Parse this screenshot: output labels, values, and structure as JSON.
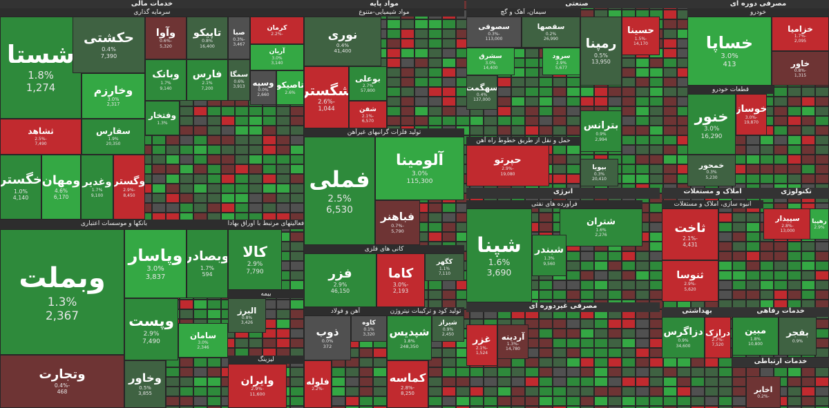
{
  "headers": [
    "خدمات مالی",
    "سرمایه گذاری",
    "مواد پایه",
    "مواد شیمیایی-متنوع",
    "صنعتی",
    "سیمان، آهک و گچ",
    "مصرفی دوره ای",
    "خودرو",
    "بانکها و موسسات اعتباری",
    "فعالیتهای مرتبط با اوراق بهادار",
    "تولید فلزات گرانبهای غیرآهن",
    "کانی های فلزی",
    "آهن و فولاد",
    "تولید کود و ترکیبات نیتروژن",
    "انرژی",
    "فراورده های نفتی",
    "املاک و مستغلات",
    "انبوه سازی، املاک و مستغلات",
    "تکنولوژی",
    "مصرفی غیردوره ای",
    "بهداشتی",
    "خدمات رفاهی",
    "خدمات ارتباطی",
    "قطعات خودرو",
    "بیمه",
    "لیزینگ",
    "حمل و نقل از طریق خطوط راه آهن"
  ],
  "tiles": [
    {
      "name": "شستا",
      "change": "1.8%",
      "value": "1,274"
    },
    {
      "name": "حکشتی",
      "change": "0.4%",
      "value": "7,390"
    },
    {
      "name": "وخارزم",
      "change": "3.0%",
      "value": "2,317"
    },
    {
      "name": "ثشاهد",
      "change": "-2.5%",
      "value": "7,490"
    },
    {
      "name": "سفارس",
      "change": "1.9%",
      "value": "20,350"
    },
    {
      "name": "خگستر",
      "change": "1.0%",
      "value": "4,140"
    },
    {
      "name": "ومهان",
      "change": "4.6%",
      "value": "6,170"
    },
    {
      "name": "وغدیر",
      "change": "1.7%",
      "value": "9,100"
    },
    {
      "name": "وگستر",
      "change": "-2.9%",
      "value": "8,450"
    },
    {
      "name": "وآوا",
      "change": "-0.6%",
      "value": "5,320"
    },
    {
      "name": "تاپیکو",
      "change": "0.8%",
      "value": "16,400"
    },
    {
      "name": "صبا",
      "change": "-0.3%",
      "value": "3,467"
    },
    {
      "name": "کرمان",
      "change": "-2.2%"
    },
    {
      "name": "آریان",
      "change": "3.0%",
      "value": "3,140"
    },
    {
      "name": "وبانک",
      "change": "1.7%",
      "value": "9,140"
    },
    {
      "name": "فارس",
      "change": "2.1%",
      "value": "7,200"
    },
    {
      "name": "سمگا",
      "change": "0.6%",
      "value": "3,913"
    },
    {
      "name": "وسپه",
      "change": "0.0%",
      "value": "2,660"
    },
    {
      "name": "تاصیکو",
      "change": "2.6%"
    },
    {
      "name": "وفتخار",
      "change": "1.3%"
    },
    {
      "name": "وبملت",
      "change": "1.3%",
      "value": "2,367"
    },
    {
      "name": "وپاسار",
      "change": "3.0%",
      "value": "3,837"
    },
    {
      "name": "وبصادر",
      "change": "1.7%",
      "value": "594"
    },
    {
      "name": "وپست",
      "change": "2.9%",
      "value": "7,490"
    },
    {
      "name": "سامان",
      "change": "3.0%",
      "value": "2,346"
    },
    {
      "name": "وتجارت",
      "change": "-0.4%",
      "value": "468"
    },
    {
      "name": "وخاور",
      "change": "0.5%",
      "value": "3,855"
    },
    {
      "name": "کالا",
      "change": "2.9%",
      "value": "7,790"
    },
    {
      "name": "البرز",
      "change": "0.8%",
      "value": "3,426"
    },
    {
      "name": "وایران",
      "change": "-2.9%",
      "value": "11,600"
    },
    {
      "name": "نوری",
      "change": "0.4%",
      "value": "41,400"
    },
    {
      "name": "بوعلی",
      "change": "2.7%",
      "value": "57,800"
    },
    {
      "name": "شگستر",
      "change": "-2.6%",
      "value": "1,044"
    },
    {
      "name": "شفن",
      "change": "-2.1%",
      "value": "6,570"
    },
    {
      "name": "فملی",
      "change": "2.5%",
      "value": "6,530"
    },
    {
      "name": "آلومینا",
      "change": "3.0%",
      "value": "115,300"
    },
    {
      "name": "فباهنر",
      "change": "-0.7%",
      "value": "5,790"
    },
    {
      "name": "فزر",
      "change": "2.9%",
      "value": "46,150"
    },
    {
      "name": "کاما",
      "change": "-3.0%",
      "value": "2,193"
    },
    {
      "name": "کگهر",
      "change": "1.1%",
      "value": "7,110"
    },
    {
      "name": "ذوب",
      "change": "0.0%",
      "value": "372"
    },
    {
      "name": "کاوه",
      "change": "0.1%",
      "value": "3,320"
    },
    {
      "name": "شپدیس",
      "change": "1.8%",
      "value": "248,350"
    },
    {
      "name": "شیراز",
      "change": "0.9%",
      "value": "2,450"
    },
    {
      "name": "کماسه",
      "change": "-2.8%",
      "value": "8,250"
    },
    {
      "name": "فلوله",
      "change": "-2.2%"
    },
    {
      "name": "سصوفی",
      "change": "-0.3%",
      "value": "113,000"
    },
    {
      "name": "سفصها",
      "change": "0.2%",
      "value": "26,990"
    },
    {
      "name": "سشرق",
      "change": "3.0%",
      "value": "14,400"
    },
    {
      "name": "سرود",
      "change": "2.9%",
      "value": "5,677"
    },
    {
      "name": "سهگمت",
      "change": "0.4%",
      "value": "137,000"
    },
    {
      "name": "رمپنا",
      "change": "0.5%",
      "value": "13,950"
    },
    {
      "name": "حسینا",
      "change": "-1.5%",
      "value": "14,170"
    },
    {
      "name": "بترانس",
      "change": "0.9%",
      "value": "2,994"
    },
    {
      "name": "حپرتو",
      "change": "-2.9%",
      "value": "19,080"
    },
    {
      "name": "بپویا",
      "change": "0.3%",
      "value": "20,410"
    },
    {
      "name": "خساپا",
      "change": "3.0%",
      "value": "413"
    },
    {
      "name": "خزامیا",
      "change": "-1.7%",
      "value": "2,095"
    },
    {
      "name": "خاور",
      "change": "-0.8%",
      "value": "1,315"
    },
    {
      "name": "خنور",
      "change": "3.0%",
      "value": "16,290"
    },
    {
      "name": "خوساز",
      "change": "-3.0%",
      "value": "19,870"
    },
    {
      "name": "خمحور",
      "change": "0.3%",
      "value": "5,230"
    },
    {
      "name": "شپنا",
      "change": "1.6%",
      "value": "3,690"
    },
    {
      "name": "شتران",
      "change": "1.6%",
      "value": "2,276"
    },
    {
      "name": "شبندر",
      "change": "1.3%",
      "value": "9,560"
    },
    {
      "name": "ثاخت",
      "change": "-2.1%",
      "value": "4,431"
    },
    {
      "name": "ثنوسا",
      "change": "-2.9%",
      "value": "5,620"
    },
    {
      "name": "سپیدار",
      "change": "-2.8%",
      "value": "13,000"
    },
    {
      "name": "رهپیا",
      "change": "2.9%"
    },
    {
      "name": "غزر",
      "change": "-2.1%",
      "value": "1,524"
    },
    {
      "name": "آردینه",
      "change": "-1.3%",
      "value": "14,780"
    },
    {
      "name": "دزاگرس",
      "change": "0.9%",
      "value": "34,600"
    },
    {
      "name": "درازک",
      "change": "-2.7%",
      "value": "7,520"
    },
    {
      "name": "مبین",
      "change": "1.8%",
      "value": "10,800"
    },
    {
      "name": "بفجر",
      "change": "0.9%"
    },
    {
      "name": "اخابر",
      "change": "-0.2%"
    }
  ]
}
